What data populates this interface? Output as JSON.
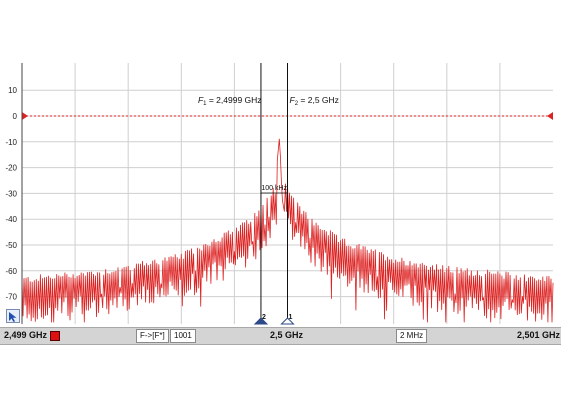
{
  "chart_data": {
    "type": "line",
    "title": "",
    "xlabel": "",
    "ylabel": "",
    "y_ticks": [
      10,
      0,
      -10,
      -20,
      -30,
      -40,
      -50,
      -60,
      -70
    ],
    "ylim": [
      -80,
      20
    ],
    "xlim_ghz": [
      2.499,
      2.501
    ],
    "grid": true,
    "reference_level": 0,
    "series": [
      {
        "color": "#dd2222",
        "x_ghz": [
          2.499,
          2.4993,
          2.4996,
          2.4998,
          2.49985,
          2.4999,
          2.49993,
          2.49995,
          2.49997,
          2.49998,
          2.49999,
          2.5,
          2.50002,
          2.50005,
          2.5001,
          2.5002,
          2.5004,
          2.5006,
          2.5008,
          2.501
        ],
        "envelope_db": [
          -67,
          -64,
          -58,
          -48,
          -45,
          -40,
          -35,
          -30,
          -8,
          -33,
          -28,
          -30,
          -35,
          -40,
          -45,
          -52,
          -59,
          -63,
          -65,
          -67
        ]
      }
    ],
    "markers": [
      {
        "id": "2",
        "label_prefix": "F",
        "label_sub": "1",
        "label_value": "= 2,4999 GHz",
        "x_ghz": 2.4999
      },
      {
        "id": "1",
        "label_prefix": "F",
        "label_sub": "2",
        "label_value": "= 2,5 GHz",
        "x_ghz": 2.5
      }
    ],
    "delta_label": "100 kHz",
    "colors": {
      "trace": "#dd2222",
      "reference": "#dd2222",
      "marker": "#111111",
      "grid": "#cfcfcf"
    }
  },
  "status_bar": {
    "start_freq": "2,499 GHz",
    "mode_button": "F->[F*]",
    "points": "1001",
    "center_freq": "2,5 GHz",
    "span": "2 MHz",
    "stop_freq": "2,501 GHz"
  },
  "icons": {
    "tool": "cursor-tool-icon",
    "trace_color": "trace-color-swatch"
  }
}
